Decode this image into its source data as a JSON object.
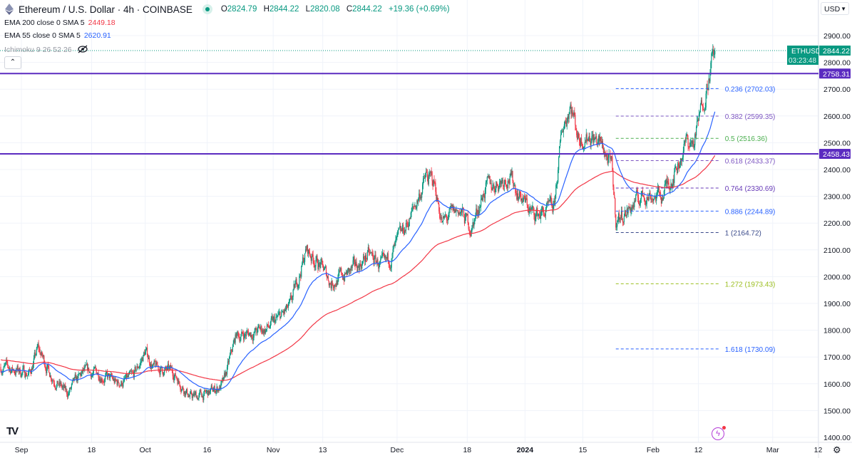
{
  "header": {
    "title": "Ethereum / U.S. Dollar · 4h · COINBASE",
    "open_label": "O",
    "open": "2824.79",
    "high_label": "H",
    "high": "2844.22",
    "low_label": "L",
    "low": "2820.08",
    "close_label": "C",
    "close": "2844.22",
    "change": "+19.36 (+0.69%)"
  },
  "indicators": [
    {
      "label": "EMA 200 close 0 SMA 5",
      "value": "2449.18",
      "color": "#f23645"
    },
    {
      "label": "EMA 55 close 0 SMA 5",
      "value": "2620.91",
      "color": "#2962ff"
    },
    {
      "label": "Ichimoku 9 26 52 26",
      "value": "",
      "color": "#9598a1"
    }
  ],
  "collapse_label": "⌃",
  "currency": "USD",
  "symbol_tag": "ETHUSD",
  "last_price": "2844.22",
  "countdown": "03:23:48",
  "colors": {
    "up": "#089981",
    "down": "#f23645",
    "ema200": "#f23645",
    "ema55": "#2962ff",
    "hline": "#5b2bc0"
  },
  "chart_data": {
    "type": "candlestick",
    "title": "Ethereum / U.S. Dollar · 4h · COINBASE",
    "ylim": [
      1400,
      2900
    ],
    "yticks": [
      1400,
      1500,
      1600,
      1700,
      1800,
      1900,
      2000,
      2100,
      2200,
      2300,
      2400,
      2500,
      2600,
      2700,
      2800,
      2900
    ],
    "xticks": [
      {
        "label": "Sep",
        "date": "2023-09-01"
      },
      {
        "label": "18",
        "date": "2023-09-18"
      },
      {
        "label": "Oct",
        "date": "2023-10-01"
      },
      {
        "label": "16",
        "date": "2023-10-16"
      },
      {
        "label": "Nov",
        "date": "2023-11-01"
      },
      {
        "label": "13",
        "date": "2023-11-13"
      },
      {
        "label": "Dec",
        "date": "2023-12-01"
      },
      {
        "label": "18",
        "date": "2023-12-18"
      },
      {
        "label": "2024",
        "date": "2024-01-01",
        "bold": true
      },
      {
        "label": "15",
        "date": "2024-01-15"
      },
      {
        "label": "Feb",
        "date": "2024-02-01"
      },
      {
        "label": "12",
        "date": "2024-02-12"
      },
      {
        "label": "Mar",
        "date": "2024-03-01"
      },
      {
        "label": "12",
        "date": "2024-03-12"
      }
    ],
    "close_path": [
      [
        "2023-08-27",
        1663
      ],
      [
        "2023-09-03",
        1640
      ],
      [
        "2023-09-05",
        1730
      ],
      [
        "2023-09-08",
        1640
      ],
      [
        "2023-09-12",
        1560
      ],
      [
        "2023-09-16",
        1640
      ],
      [
        "2023-09-20",
        1640
      ],
      [
        "2023-09-24",
        1600
      ],
      [
        "2023-09-28",
        1620
      ],
      [
        "2023-10-01",
        1720
      ],
      [
        "2023-10-03",
        1660
      ],
      [
        "2023-10-08",
        1640
      ],
      [
        "2023-10-12",
        1550
      ],
      [
        "2023-10-16",
        1560
      ],
      [
        "2023-10-20",
        1600
      ],
      [
        "2023-10-23",
        1780
      ],
      [
        "2023-10-27",
        1790
      ],
      [
        "2023-10-31",
        1810
      ],
      [
        "2023-11-05",
        1880
      ],
      [
        "2023-11-09",
        2100
      ],
      [
        "2023-11-12",
        2050
      ],
      [
        "2023-11-15",
        1980
      ],
      [
        "2023-11-20",
        2020
      ],
      [
        "2023-11-24",
        2080
      ],
      [
        "2023-11-28",
        2030
      ],
      [
        "2023-12-02",
        2150
      ],
      [
        "2023-12-05",
        2250
      ],
      [
        "2023-12-08",
        2370
      ],
      [
        "2023-12-10",
        2350
      ],
      [
        "2023-12-12",
        2200
      ],
      [
        "2023-12-16",
        2250
      ],
      [
        "2023-12-19",
        2180
      ],
      [
        "2023-12-22",
        2320
      ],
      [
        "2023-12-28",
        2380
      ],
      [
        "2023-12-31",
        2300
      ],
      [
        "2024-01-03",
        2230
      ],
      [
        "2024-01-08",
        2250
      ],
      [
        "2024-01-10",
        2550
      ],
      [
        "2024-01-12",
        2650
      ],
      [
        "2024-01-14",
        2520
      ],
      [
        "2024-01-17",
        2530
      ],
      [
        "2024-01-20",
        2480
      ],
      [
        "2024-01-22",
        2400
      ],
      [
        "2024-01-23",
        2210
      ],
      [
        "2024-01-26",
        2250
      ],
      [
        "2024-01-30",
        2310
      ],
      [
        "2024-02-03",
        2300
      ],
      [
        "2024-02-07",
        2420
      ],
      [
        "2024-02-09",
        2500
      ],
      [
        "2024-02-11",
        2500
      ],
      [
        "2024-02-13",
        2650
      ],
      [
        "2024-02-15",
        2790
      ],
      [
        "2024-02-16",
        2844.22
      ]
    ],
    "ema_periods": [
      200,
      55
    ],
    "horizontal_lines": [
      {
        "price": 2758.31,
        "label": "2758.31"
      },
      {
        "price": 2458.43,
        "label": "2458.43"
      }
    ],
    "fibonacci": {
      "start_date": "2024-01-23",
      "end_date": "2024-02-16",
      "levels": [
        {
          "ratio": "0.236",
          "price": 2702.03,
          "label": "0.236 (2702.03)",
          "color": "#2962ff"
        },
        {
          "ratio": "0.382",
          "price": 2599.35,
          "label": "0.382 (2599.35)",
          "color": "#7e57c2"
        },
        {
          "ratio": "0.5",
          "price": 2516.36,
          "label": "0.5 (2516.36)",
          "color": "#4caf50"
        },
        {
          "ratio": "0.618",
          "price": 2433.37,
          "label": "0.618 (2433.37)",
          "color": "#7e57c2"
        },
        {
          "ratio": "0.764",
          "price": 2330.69,
          "label": "0.764 (2330.69)",
          "color": "#673ab7"
        },
        {
          "ratio": "0.886",
          "price": 2244.89,
          "label": "0.886 (2244.89)",
          "color": "#2962ff"
        },
        {
          "ratio": "1",
          "price": 2164.72,
          "label": "1 (2164.72)",
          "color": "#3a4a8a"
        },
        {
          "ratio": "1.272",
          "price": 1973.43,
          "label": "1.272 (1973.43)",
          "color": "#9bbe1e"
        },
        {
          "ratio": "1.618",
          "price": 1730.09,
          "label": "1.618 (1730.09)",
          "color": "#2962ff"
        }
      ]
    }
  }
}
